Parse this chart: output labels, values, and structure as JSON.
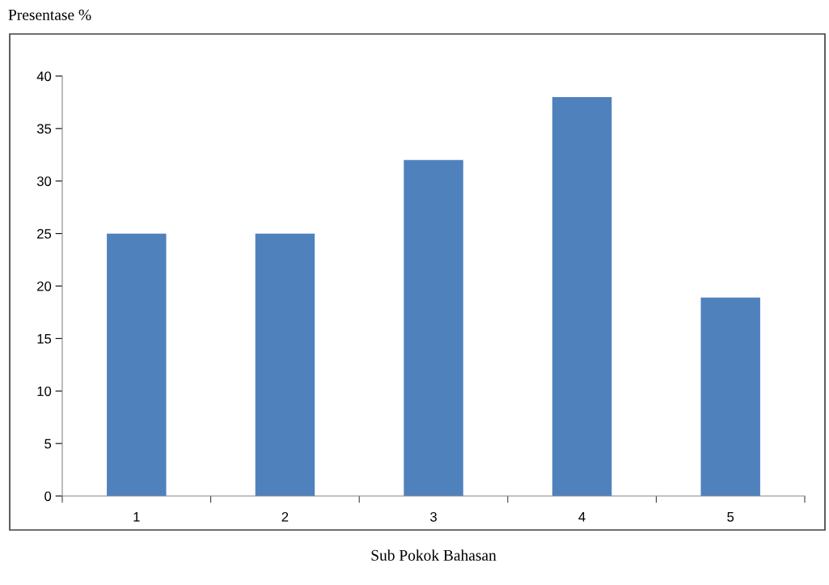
{
  "chart_data": {
    "type": "bar",
    "title": "Presentase %",
    "xlabel": "Sub Pokok Bahasan",
    "categories": [
      "1",
      "2",
      "3",
      "4",
      "5"
    ],
    "values": [
      25,
      25,
      32,
      38,
      18.9
    ],
    "color": "#4f81bd",
    "ylim": [
      0,
      40
    ],
    "yticks": [
      0,
      5,
      10,
      15,
      20,
      25,
      30,
      35,
      40
    ],
    "grid": false,
    "legend": false
  }
}
